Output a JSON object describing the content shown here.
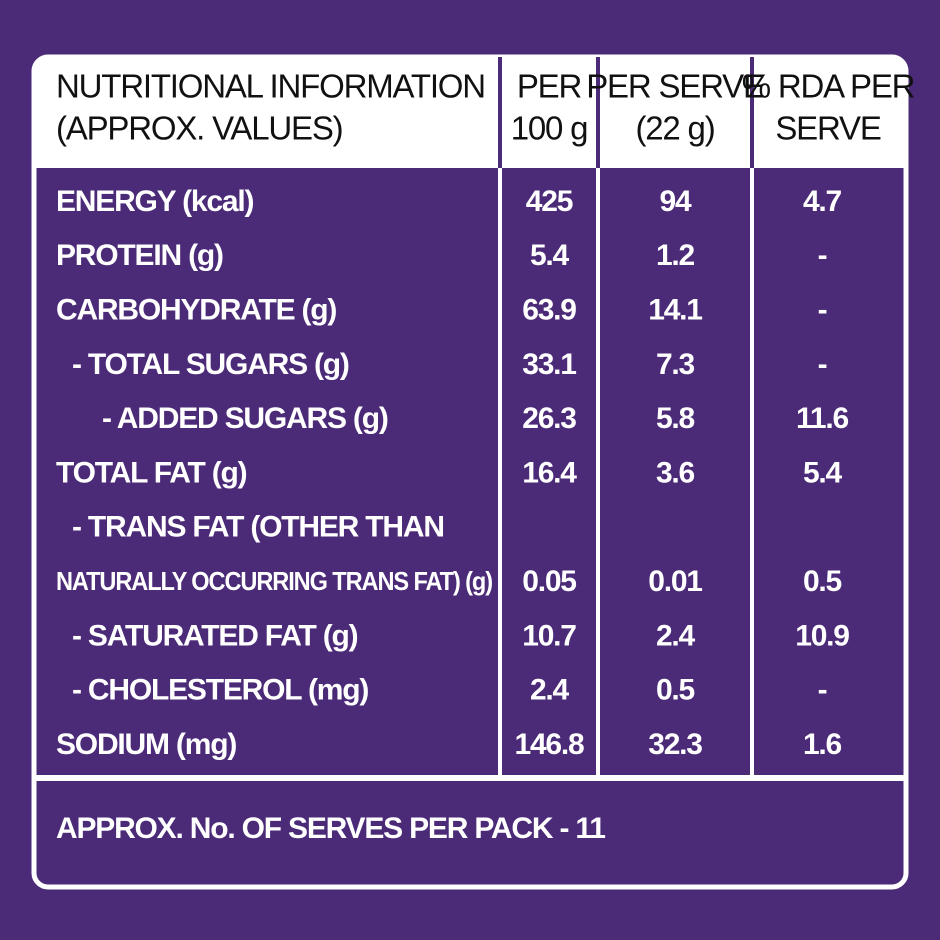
{
  "header": {
    "columns": [
      {
        "lines": [
          "NUTRITIONAL INFORMATION",
          "(APPROX. VALUES)"
        ]
      },
      {
        "lines": [
          "PER",
          "100 g"
        ]
      },
      {
        "lines": [
          "PER SERVE",
          "(22 g)"
        ]
      },
      {
        "lines": [
          "% RDA PER",
          "SERVE"
        ]
      }
    ]
  },
  "table": {
    "rows": [
      [
        "ENERGY (kcal)",
        "425",
        "94",
        "4.7"
      ],
      [
        "PROTEIN (g)",
        "5.4",
        "1.2",
        "-"
      ],
      [
        "CARBOHYDRATE (g)",
        "63.9",
        "14.1",
        "-"
      ],
      [
        "- TOTAL SUGARS (g)",
        "33.1",
        "7.3",
        "-"
      ],
      [
        "- ADDED SUGARS (g)",
        "26.3",
        "5.8",
        "11.6"
      ],
      [
        "TOTAL FAT (g)",
        "16.4",
        "3.6",
        "5.4"
      ],
      [
        "- TRANS FAT (OTHER THAN"
      ],
      [
        "NATURALLY OCCURRING TRANS FAT) (g)",
        "0.05",
        "0.01",
        "0.5"
      ],
      [
        "- SATURATED FAT (g)",
        "10.7",
        "2.4",
        "10.9"
      ],
      [
        "- CHOLESTEROL (mg)",
        "2.4",
        "0.5",
        "-"
      ],
      [
        "SODIUM (mg)",
        "146.8",
        "32.3",
        "1.6"
      ]
    ]
  },
  "footer": {
    "text": "APPROX. No. OF SERVES PER PACK - 11"
  }
}
